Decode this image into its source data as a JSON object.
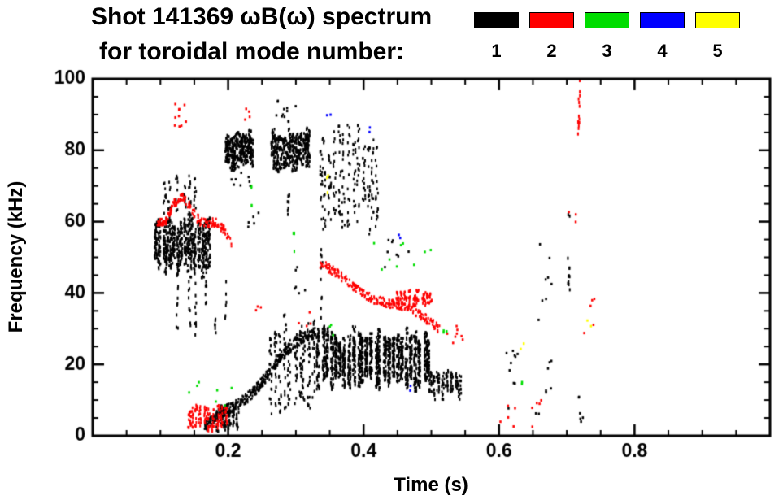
{
  "title": {
    "line1": "Shot 141369 ωB(ω) spectrum",
    "line2": "for toroidal mode number:"
  },
  "legend": {
    "entries": [
      {
        "label": "1",
        "color": "#000000"
      },
      {
        "label": "2",
        "color": "#ff0000"
      },
      {
        "label": "3",
        "color": "#00dd00"
      },
      {
        "label": "4",
        "color": "#0000ff"
      },
      {
        "label": "5",
        "color": "#ffff00"
      }
    ]
  },
  "chart_data": {
    "type": "scatter",
    "title": "Shot 141369 ωB(ω) spectrum",
    "subtitle": "for toroidal mode number:",
    "xlabel": "Time (s)",
    "ylabel": "Frequency (kHz)",
    "xlim": [
      0,
      1.0
    ],
    "ylim": [
      0,
      100
    ],
    "xticks": [
      0.2,
      0.4,
      0.6,
      0.8
    ],
    "xtick_labels": [
      "0.2",
      "0.4",
      "0.6",
      "0.8"
    ],
    "yticks": [
      0,
      20,
      40,
      60,
      80,
      100
    ],
    "ytick_labels": [
      "0",
      "20",
      "40",
      "60",
      "80",
      "100"
    ],
    "x_minor_step": 0.05,
    "y_minor_step": 5,
    "grid": false,
    "legend_position": "top-right",
    "modes": [
      1,
      2,
      3,
      4,
      5
    ],
    "clusters": [
      {
        "mode": 1,
        "shape": "streakblob",
        "t": [
          0.092,
          0.175
        ],
        "f": [
          44,
          63
        ],
        "cols": 16,
        "density": 42
      },
      {
        "mode": 1,
        "shape": "streakblob",
        "t": [
          0.1,
          0.158
        ],
        "f": [
          62,
          73
        ],
        "cols": 6,
        "density": 9
      },
      {
        "mode": 1,
        "shape": "vline",
        "t": 0.125,
        "f": [
          28,
          46
        ],
        "n": 10
      },
      {
        "mode": 1,
        "shape": "vline",
        "t": 0.143,
        "f": [
          30,
          45
        ],
        "n": 8
      },
      {
        "mode": 1,
        "shape": "vline",
        "t": 0.152,
        "f": [
          25,
          44
        ],
        "n": 9
      },
      {
        "mode": 1,
        "shape": "vline",
        "t": 0.168,
        "f": [
          30,
          44
        ],
        "n": 7
      },
      {
        "mode": 1,
        "shape": "vline",
        "t": 0.181,
        "f": [
          28,
          40
        ],
        "n": 6
      },
      {
        "mode": 1,
        "shape": "vline",
        "t": 0.196,
        "f": [
          30,
          44
        ],
        "n": 6
      },
      {
        "mode": 1,
        "shape": "specks",
        "t": [
          0.225,
          0.245
        ],
        "f": [
          56,
          63
        ],
        "n": 5
      },
      {
        "mode": 1,
        "shape": "streakblob",
        "t": [
          0.195,
          0.237
        ],
        "f": [
          74,
          86
        ],
        "cols": 12,
        "density": 30
      },
      {
        "mode": 1,
        "shape": "specks",
        "t": [
          0.202,
          0.235
        ],
        "f": [
          69,
          74
        ],
        "n": 8
      },
      {
        "mode": 1,
        "shape": "streakblob",
        "t": [
          0.263,
          0.322
        ],
        "f": [
          73,
          87
        ],
        "cols": 14,
        "density": 30
      },
      {
        "mode": 1,
        "shape": "specks",
        "t": [
          0.268,
          0.302
        ],
        "f": [
          88,
          94
        ],
        "n": 12
      },
      {
        "mode": 1,
        "shape": "vline",
        "t": 0.289,
        "f": [
          60,
          72
        ],
        "n": 8
      },
      {
        "mode": 1,
        "shape": "streakblob",
        "t": [
          0.332,
          0.425
        ],
        "f": [
          56,
          88
        ],
        "cols": 13,
        "density": 18
      },
      {
        "mode": 1,
        "shape": "vline",
        "t": 0.338,
        "f": [
          33,
          56
        ],
        "n": 10
      },
      {
        "mode": 1,
        "shape": "band",
        "t": [
          0.165,
          0.33
        ],
        "f": [
          1,
          30
        ],
        "th": 3,
        "n": 420,
        "wiggle": 1.5
      },
      {
        "mode": 1,
        "shape": "streakblob",
        "t": [
          0.182,
          0.215
        ],
        "f": [
          1,
          9
        ],
        "cols": 6,
        "density": 14
      },
      {
        "mode": 1,
        "shape": "streakblob",
        "t": [
          0.258,
          0.332
        ],
        "f": [
          3,
          34
        ],
        "cols": 10,
        "density": 22
      },
      {
        "mode": 1,
        "shape": "streakblob",
        "t": [
          0.33,
          0.5
        ],
        "f": [
          12,
          31
        ],
        "cols": 26,
        "density": 55
      },
      {
        "mode": 1,
        "shape": "specks",
        "t": [
          0.43,
          0.47
        ],
        "f": [
          46,
          56
        ],
        "n": 8
      },
      {
        "mode": 1,
        "shape": "streakblob",
        "t": [
          0.495,
          0.545
        ],
        "f": [
          10,
          19
        ],
        "cols": 8,
        "density": 18
      },
      {
        "mode": 1,
        "shape": "specks",
        "t": [
          0.295,
          0.315
        ],
        "f": [
          38,
          50
        ],
        "n": 6
      },
      {
        "mode": 1,
        "shape": "specks",
        "t": [
          0.61,
          0.628
        ],
        "f": [
          1,
          25
        ],
        "n": 10
      },
      {
        "mode": 1,
        "shape": "specks",
        "t": [
          0.652,
          0.678
        ],
        "f": [
          2,
          55
        ],
        "n": 16
      },
      {
        "mode": 1,
        "shape": "vline",
        "t": 0.703,
        "f": [
          40,
          62
        ],
        "n": 12
      },
      {
        "mode": 1,
        "shape": "specks",
        "t": [
          0.712,
          0.725
        ],
        "f": [
          2,
          12
        ],
        "n": 6
      },
      {
        "mode": 2,
        "shape": "band",
        "t": [
          0.095,
          0.128
        ],
        "f": [
          58,
          66
        ],
        "th": 2,
        "n": 70,
        "wiggle": 1
      },
      {
        "mode": 2,
        "shape": "band",
        "t": [
          0.128,
          0.205
        ],
        "f": [
          66,
          55
        ],
        "th": 2.5,
        "n": 120,
        "wiggle": 1.5
      },
      {
        "mode": 2,
        "shape": "specks",
        "t": [
          0.112,
          0.138
        ],
        "f": [
          86,
          93
        ],
        "n": 10
      },
      {
        "mode": 2,
        "shape": "specks",
        "t": [
          0.225,
          0.238
        ],
        "f": [
          88,
          92
        ],
        "n": 4
      },
      {
        "mode": 2,
        "shape": "streakblob",
        "t": [
          0.138,
          0.2
        ],
        "f": [
          1,
          9
        ],
        "cols": 10,
        "density": 14
      },
      {
        "mode": 2,
        "shape": "band",
        "t": [
          0.335,
          0.515
        ],
        "f": [
          47,
          30
        ],
        "th": 2.5,
        "n": 260,
        "wiggle": 1.2
      },
      {
        "mode": 2,
        "shape": "streakblob",
        "t": [
          0.445,
          0.503
        ],
        "f": [
          36,
          41
        ],
        "cols": 9,
        "density": 12
      },
      {
        "mode": 2,
        "shape": "specks",
        "t": [
          0.52,
          0.555
        ],
        "f": [
          26,
          31
        ],
        "n": 8
      },
      {
        "mode": 2,
        "shape": "specks",
        "t": [
          0.3,
          0.325
        ],
        "f": [
          30,
          36
        ],
        "n": 4
      },
      {
        "mode": 2,
        "shape": "specks",
        "t": [
          0.24,
          0.252
        ],
        "f": [
          34,
          38
        ],
        "n": 3
      },
      {
        "mode": 2,
        "shape": "specks",
        "t": [
          0.6,
          0.625
        ],
        "f": [
          2,
          9
        ],
        "n": 5
      },
      {
        "mode": 2,
        "shape": "specks",
        "t": [
          0.648,
          0.672
        ],
        "f": [
          2,
          12
        ],
        "n": 5
      },
      {
        "mode": 2,
        "shape": "vline",
        "t": 0.718,
        "f": [
          83,
          100
        ],
        "n": 14
      },
      {
        "mode": 2,
        "shape": "specks",
        "t": [
          0.7,
          0.715
        ],
        "f": [
          58,
          63
        ],
        "n": 3
      },
      {
        "mode": 2,
        "shape": "specks",
        "t": [
          0.725,
          0.742
        ],
        "f": [
          28,
          40
        ],
        "n": 5
      },
      {
        "mode": 3,
        "shape": "specks",
        "t": [
          0.14,
          0.21
        ],
        "f": [
          8,
          22
        ],
        "n": 7
      },
      {
        "mode": 3,
        "shape": "vline",
        "t": 0.234,
        "f": [
          64,
          70
        ],
        "n": 4
      },
      {
        "mode": 3,
        "shape": "vline",
        "t": 0.297,
        "f": [
          51,
          58
        ],
        "n": 4
      },
      {
        "mode": 3,
        "shape": "specks",
        "t": [
          0.345,
          0.36
        ],
        "f": [
          28,
          33
        ],
        "n": 3
      },
      {
        "mode": 3,
        "shape": "specks",
        "t": [
          0.41,
          0.5
        ],
        "f": [
          44,
          54
        ],
        "n": 9
      },
      {
        "mode": 3,
        "shape": "specks",
        "t": [
          0.515,
          0.53
        ],
        "f": [
          26,
          30
        ],
        "n": 3
      },
      {
        "mode": 3,
        "shape": "specks",
        "t": [
          0.63,
          0.645
        ],
        "f": [
          12,
          18
        ],
        "n": 2
      },
      {
        "mode": 4,
        "shape": "specks",
        "t": [
          0.345,
          0.355
        ],
        "f": [
          86,
          90
        ],
        "n": 2
      },
      {
        "mode": 4,
        "shape": "specks",
        "t": [
          0.4,
          0.41
        ],
        "f": [
          84,
          88
        ],
        "n": 2
      },
      {
        "mode": 4,
        "shape": "specks",
        "t": [
          0.45,
          0.46
        ],
        "f": [
          53,
          57
        ],
        "n": 2
      },
      {
        "mode": 4,
        "shape": "specks",
        "t": [
          0.465,
          0.475
        ],
        "f": [
          10,
          14
        ],
        "n": 2
      },
      {
        "mode": 5,
        "shape": "vline",
        "t": 0.347,
        "f": [
          68,
          73
        ],
        "n": 3
      },
      {
        "mode": 5,
        "shape": "specks",
        "t": [
          0.628,
          0.64
        ],
        "f": [
          22,
          27
        ],
        "n": 2
      },
      {
        "mode": 5,
        "shape": "specks",
        "t": [
          0.73,
          0.742
        ],
        "f": [
          30,
          34
        ],
        "n": 2
      }
    ]
  }
}
